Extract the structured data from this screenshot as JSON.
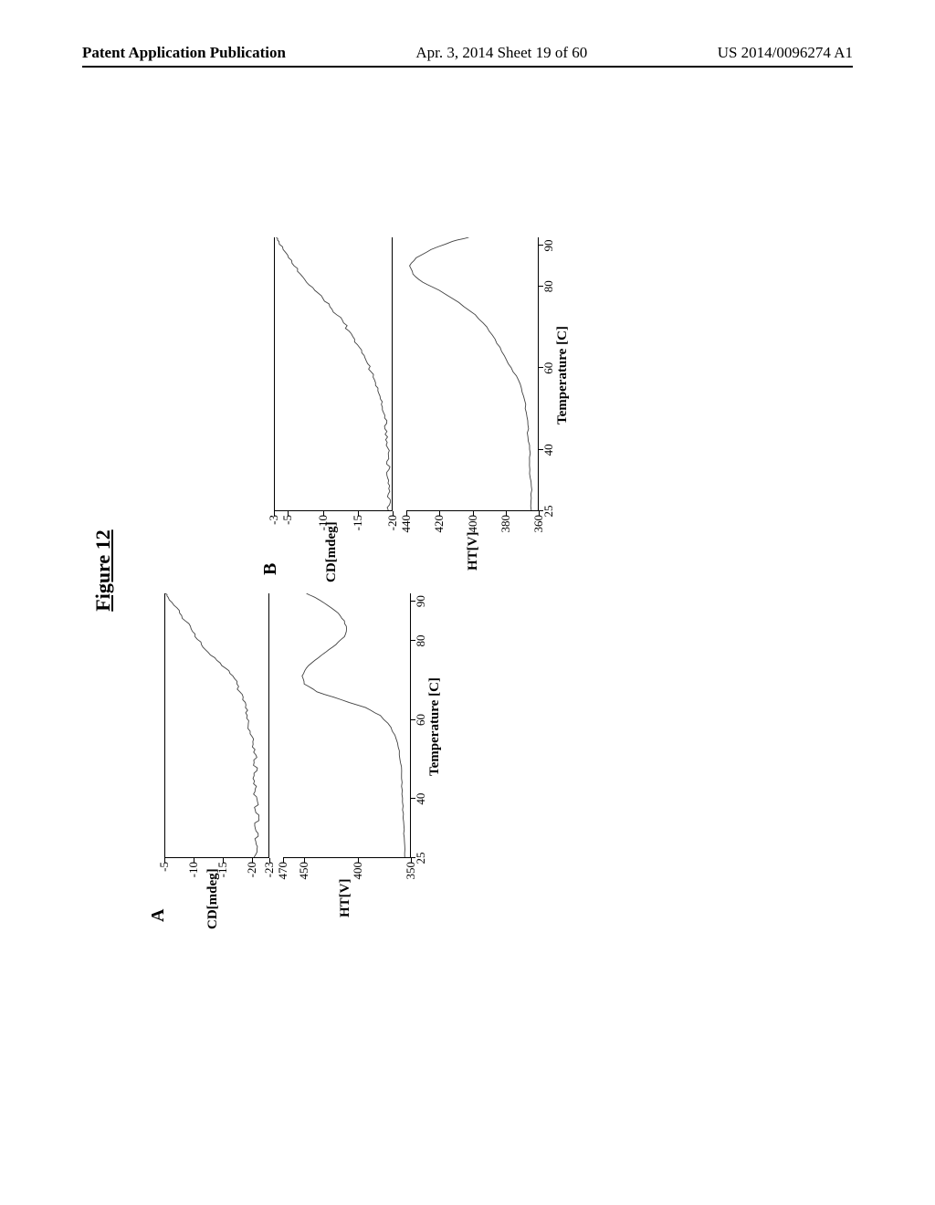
{
  "header": {
    "left": "Patent Application Publication",
    "center": "Apr. 3, 2014  Sheet 19 of 60",
    "right": "US 2014/0096274 A1"
  },
  "figure": {
    "title": "Figure 12",
    "panels": {
      "A": {
        "label": "A",
        "cd": {
          "ylabel": "CD[mdeg]",
          "yticks": [
            -5,
            -10,
            -15,
            -20,
            -23
          ],
          "ylim": [
            -23,
            -5
          ],
          "trace_color": "#404040",
          "trace_points": [
            [
              25,
              -20.5
            ],
            [
              27,
              -21.0
            ],
            [
              29,
              -20.8
            ],
            [
              31,
              -21.2
            ],
            [
              33,
              -20.6
            ],
            [
              35,
              -21.3
            ],
            [
              37,
              -20.7
            ],
            [
              39,
              -21.1
            ],
            [
              41,
              -20.4
            ],
            [
              43,
              -20.9
            ],
            [
              45,
              -20.3
            ],
            [
              47,
              -21.0
            ],
            [
              49,
              -20.5
            ],
            [
              51,
              -20.8
            ],
            [
              53,
              -20.2
            ],
            [
              55,
              -20.4
            ],
            [
              57,
              -19.8
            ],
            [
              59,
              -19.5
            ],
            [
              61,
              -19.3
            ],
            [
              63,
              -19.0
            ],
            [
              65,
              -18.5
            ],
            [
              67,
              -18.0
            ],
            [
              69,
              -17.5
            ],
            [
              71,
              -16.8
            ],
            [
              73,
              -15.5
            ],
            [
              75,
              -14.0
            ],
            [
              77,
              -12.5
            ],
            [
              79,
              -11.3
            ],
            [
              81,
              -10.2
            ],
            [
              83,
              -9.5
            ],
            [
              85,
              -8.5
            ],
            [
              87,
              -7.5
            ],
            [
              89,
              -6.5
            ],
            [
              91,
              -5.5
            ],
            [
              92,
              -5.0
            ]
          ]
        },
        "ht": {
          "ylabel": "HT[V]",
          "yticks": [
            470,
            450,
            400,
            350
          ],
          "ylim": [
            350,
            470
          ],
          "trace_color": "#404040",
          "trace_points": [
            [
              25,
              355
            ],
            [
              28,
              355
            ],
            [
              31,
              356
            ],
            [
              34,
              356
            ],
            [
              37,
              357
            ],
            [
              40,
              357
            ],
            [
              43,
              358
            ],
            [
              46,
              358
            ],
            [
              49,
              359
            ],
            [
              52,
              360
            ],
            [
              55,
              363
            ],
            [
              58,
              368
            ],
            [
              61,
              378
            ],
            [
              63,
              392
            ],
            [
              65,
              415
            ],
            [
              67,
              438
            ],
            [
              69,
              450
            ],
            [
              71,
              452
            ],
            [
              73,
              448
            ],
            [
              75,
              440
            ],
            [
              77,
              430
            ],
            [
              79,
              420
            ],
            [
              81,
              412
            ],
            [
              83,
              410
            ],
            [
              85,
              412
            ],
            [
              87,
              418
            ],
            [
              89,
              428
            ],
            [
              91,
              440
            ],
            [
              92,
              448
            ]
          ]
        },
        "xlabel": "Temperature [C]",
        "xticks": [
          25,
          40,
          60,
          80,
          90
        ],
        "xlim": [
          25,
          92
        ]
      },
      "B": {
        "label": "B",
        "cd": {
          "ylabel": "CD[mdeg]",
          "yticks": [
            -3,
            -5,
            -10,
            -15,
            -20
          ],
          "ylim": [
            -20,
            -3
          ],
          "trace_color": "#404040",
          "trace_points": [
            [
              25,
              -19.5
            ],
            [
              27,
              -19.8
            ],
            [
              29,
              -19.5
            ],
            [
              31,
              -19.7
            ],
            [
              33,
              -19.4
            ],
            [
              35,
              -19.6
            ],
            [
              37,
              -19.3
            ],
            [
              39,
              -19.5
            ],
            [
              41,
              -19.2
            ],
            [
              43,
              -19.4
            ],
            [
              45,
              -19.0
            ],
            [
              47,
              -19.3
            ],
            [
              49,
              -18.8
            ],
            [
              51,
              -18.5
            ],
            [
              53,
              -18.3
            ],
            [
              55,
              -18.0
            ],
            [
              57,
              -17.5
            ],
            [
              59,
              -17.0
            ],
            [
              61,
              -16.5
            ],
            [
              63,
              -16.0
            ],
            [
              65,
              -15.3
            ],
            [
              67,
              -14.6
            ],
            [
              69,
              -13.8
            ],
            [
              71,
              -13.0
            ],
            [
              73,
              -12.0
            ],
            [
              75,
              -11.0
            ],
            [
              77,
              -10.0
            ],
            [
              79,
              -8.8
            ],
            [
              81,
              -7.6
            ],
            [
              83,
              -6.7
            ],
            [
              85,
              -5.8
            ],
            [
              87,
              -5.0
            ],
            [
              89,
              -4.2
            ],
            [
              91,
              -3.6
            ],
            [
              92,
              -3.2
            ]
          ]
        },
        "ht": {
          "ylabel": "HT[V]",
          "yticks": [
            440,
            420,
            400,
            380,
            360
          ],
          "ylim": [
            360,
            440
          ],
          "trace_color": "#404040",
          "trace_points": [
            [
              25,
              364
            ],
            [
              28,
              364
            ],
            [
              31,
              364
            ],
            [
              34,
              365
            ],
            [
              37,
              365
            ],
            [
              40,
              365
            ],
            [
              43,
              366
            ],
            [
              46,
              366
            ],
            [
              49,
              367
            ],
            [
              52,
              368
            ],
            [
              55,
              370
            ],
            [
              58,
              373
            ],
            [
              61,
              378
            ],
            [
              64,
              382
            ],
            [
              67,
              386
            ],
            [
              70,
              391
            ],
            [
              73,
              398
            ],
            [
              76,
              408
            ],
            [
              79,
              420
            ],
            [
              81,
              430
            ],
            [
              83,
              436
            ],
            [
              85,
              438
            ],
            [
              87,
              434
            ],
            [
              89,
              425
            ],
            [
              91,
              412
            ],
            [
              92,
              402
            ]
          ]
        },
        "xlabel": "Temperature [C]",
        "xticks": [
          25,
          40,
          60,
          80,
          90
        ],
        "xlim": [
          25,
          92
        ]
      }
    }
  }
}
